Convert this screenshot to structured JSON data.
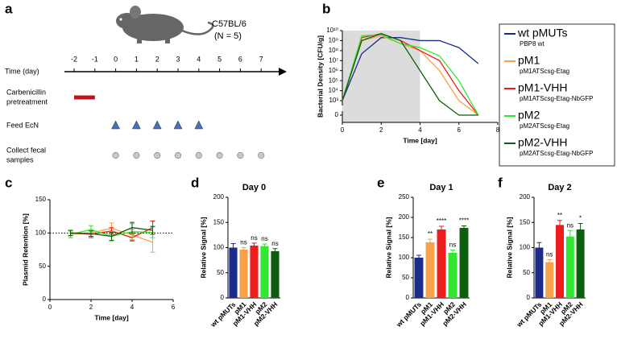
{
  "timeline": {
    "panel_label": "a",
    "strain": "C57BL/6",
    "n_label": "(N = 5)",
    "axis_label": "Time (day)",
    "days": [
      -2,
      -1,
      0,
      1,
      2,
      3,
      4,
      5,
      6,
      7
    ],
    "rows": [
      {
        "label_lines": [
          "Carbenicillin",
          "pretreatment"
        ],
        "days": [
          -2,
          -1
        ],
        "marker": "bar",
        "color": "#c0141c"
      },
      {
        "label_lines": [
          "Feed EcN"
        ],
        "days": [
          0,
          1,
          2,
          3,
          4
        ],
        "marker": "triangle",
        "color": "#4a6fb5"
      },
      {
        "label_lines": [
          "Collect fecal",
          "samples"
        ],
        "days": [
          0,
          1,
          2,
          3,
          4,
          5,
          6,
          7
        ],
        "marker": "circle",
        "color": "#c8c8c8"
      }
    ]
  },
  "chart_data": [
    {
      "type": "line",
      "panel_label": "b",
      "ylabel": "Bacterial Density [CFU/g]",
      "xlabel": "Time [day]",
      "log_y": true,
      "shade": [
        0,
        4
      ],
      "xlim": [
        0,
        8
      ],
      "xticks": [
        0,
        2,
        4,
        6,
        8
      ],
      "ylim": [
        1000,
        10000000000
      ],
      "yticks": [
        {
          "value": 10000000000,
          "label": "10¹⁰"
        },
        {
          "value": 1000000000,
          "label": "10⁹"
        },
        {
          "value": 100000000,
          "label": "10⁸"
        },
        {
          "value": 10000000,
          "label": "10⁷"
        },
        {
          "value": 1000000,
          "label": "10⁶"
        },
        {
          "value": 100000,
          "label": "10⁵"
        },
        {
          "value": 10000,
          "label": "10⁴"
        },
        {
          "value": 1000,
          "label": "10³"
        },
        0
      ],
      "x": [
        0,
        1,
        2,
        3,
        4,
        5,
        6,
        7
      ],
      "series": [
        {
          "name": "wt pMUTs",
          "sublabel": "PBP8 wt",
          "color": "#1c2a8c",
          "values": [
            1000,
            50000000,
            2000000000,
            2000000000,
            1000000000,
            1000000000,
            200000000,
            5000000
          ]
        },
        {
          "name": "pM1",
          "sublabel": "pM1ATScsg-Etag",
          "color": "#f7a24b",
          "values": [
            1000,
            1000000000,
            3000000000,
            500000000,
            100000000,
            1000000,
            1000,
            0
          ]
        },
        {
          "name": "pM1-VHH",
          "sublabel": "pM1ATScsg-Etag-NbGFP",
          "color": "#ee1c1c",
          "values": [
            1000,
            2000000000,
            5000000000,
            1000000000,
            100000000,
            10000000,
            10000,
            0
          ]
        },
        {
          "name": "pM2",
          "sublabel": "pM2ATScsg-Etag",
          "color": "#33e633",
          "values": [
            1000,
            3000000000,
            4000000000,
            500000000,
            200000000,
            30000000,
            100000,
            0
          ]
        },
        {
          "name": "pM2-VHH",
          "sublabel": "pM2ATScsg-Etag-NbGFP",
          "color": "#0f5e0f",
          "values": [
            1000,
            1000000000,
            5000000000,
            1000000000,
            1000000,
            1000,
            0,
            0
          ]
        }
      ]
    },
    {
      "type": "line",
      "panel_label": "c",
      "ylabel": "Plasmid Retention [%]",
      "xlabel": "Time [day]",
      "xlim": [
        0,
        6
      ],
      "xticks": [
        0,
        2,
        4,
        6
      ],
      "ylim": [
        0,
        150
      ],
      "yticks": [
        0,
        50,
        100,
        150
      ],
      "refline": 100,
      "x": [
        1,
        2,
        3,
        4,
        5
      ],
      "series": [
        {
          "color": "#f7a24b",
          "values": [
            98,
            100,
            107,
            97,
            86
          ],
          "errors": [
            5,
            5,
            8,
            8,
            15
          ]
        },
        {
          "color": "#ee1c1c",
          "values": [
            100,
            98,
            103,
            93,
            108
          ],
          "errors": [
            4,
            5,
            5,
            5,
            10
          ]
        },
        {
          "color": "#33e633",
          "values": [
            98,
            105,
            95,
            102,
            101
          ],
          "errors": [
            5,
            6,
            7,
            12,
            8
          ]
        },
        {
          "color": "#0f5e0f",
          "values": [
            100,
            99,
            95,
            108,
            104
          ],
          "errors": [
            4,
            4,
            6,
            8,
            6
          ]
        }
      ]
    },
    {
      "type": "bar",
      "panel_label": "d",
      "title": "Day 0",
      "ylabel": "Relative Signal [%]",
      "categories": [
        "wt pMUTs",
        "pM1",
        "pM1-VHH",
        "pM2",
        "pM2-VHH"
      ],
      "colors": [
        "#1c2a8c",
        "#f7a24b",
        "#ee1c1c",
        "#33e633",
        "#0f5e0f"
      ],
      "values": [
        100,
        96,
        104,
        103,
        93
      ],
      "errors": [
        8,
        4,
        5,
        4,
        5
      ],
      "annotations": [
        null,
        "ns",
        "ns",
        "ns",
        "ns"
      ],
      "ylim": [
        0,
        200
      ],
      "yticks": [
        0,
        50,
        100,
        150,
        200
      ]
    },
    {
      "type": "bar",
      "panel_label": "e",
      "title": "Day 1",
      "ylabel": "Relative Signal [%]",
      "categories": [
        "wt pMUTs",
        "pM1",
        "pM1-VHH",
        "pM2",
        "pM2-VHH"
      ],
      "colors": [
        "#1c2a8c",
        "#f7a24b",
        "#ee1c1c",
        "#33e633",
        "#0f5e0f"
      ],
      "values": [
        100,
        138,
        170,
        112,
        174
      ],
      "errors": [
        6,
        8,
        8,
        7,
        5
      ],
      "annotations": [
        null,
        "**",
        "****",
        "ns",
        "****"
      ],
      "ylim": [
        0,
        250
      ],
      "yticks": [
        0,
        50,
        100,
        150,
        200,
        250
      ]
    },
    {
      "type": "bar",
      "panel_label": "f",
      "title": "Day 2",
      "ylabel": "Relative Signal [%]",
      "categories": [
        "wt pMUTs",
        "pM1",
        "pM1-VHH",
        "pM2",
        "pM2-VHH"
      ],
      "colors": [
        "#1c2a8c",
        "#f7a24b",
        "#ee1c1c",
        "#33e633",
        "#0f5e0f"
      ],
      "values": [
        100,
        71,
        145,
        122,
        136
      ],
      "errors": [
        10,
        5,
        9,
        12,
        12
      ],
      "annotations": [
        null,
        "ns",
        "**",
        "ns",
        "*"
      ],
      "ylim": [
        0,
        200
      ],
      "yticks": [
        0,
        50,
        100,
        150,
        200
      ]
    }
  ]
}
